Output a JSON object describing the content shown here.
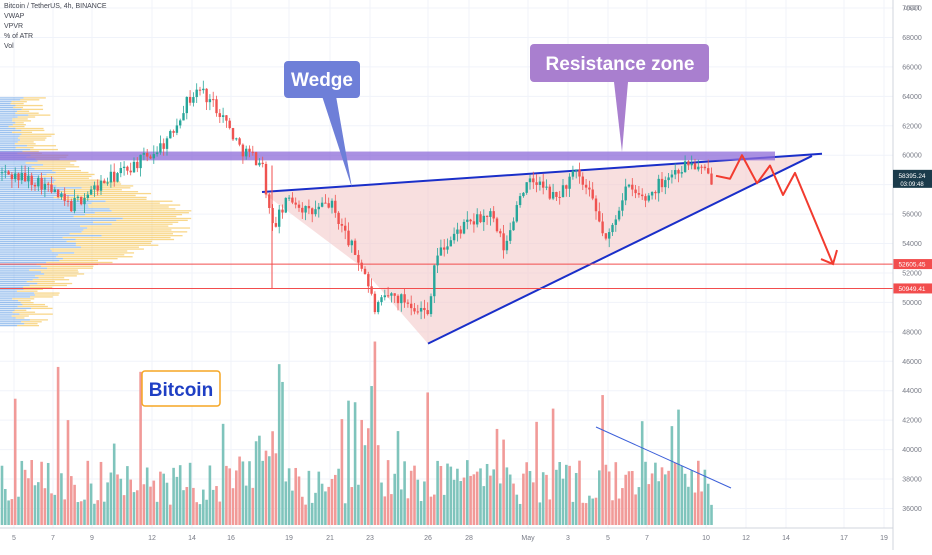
{
  "header": {
    "symbol_line": "Bitcoin / TetherUS, 4h, BINANCE",
    "indicators": [
      "VWAP",
      "VPVR",
      "% of ATR",
      "Vol"
    ]
  },
  "currency_label": "USDT",
  "colors": {
    "up": "#26a69a",
    "down": "#ef5350",
    "up_volume": "#7fc4bc",
    "down_volume": "#f19a98",
    "wedge_line": "#1a2fc9",
    "resistance_fill": "#8e6bd8",
    "wedge_fill": "#f4caca",
    "arrow": "#f23b2f",
    "support_line": "#f24d4d",
    "vp_blue": "#4d8fe0",
    "vp_yellow": "#f5c24d",
    "volume_trend": "#3b5fd9",
    "label_wedge_bg": "#6e7fd8",
    "label_resistance_bg": "#a97fcf",
    "label_bitcoin_border": "#f5a623",
    "label_bitcoin_text": "#1f3fc4"
  },
  "annotations": {
    "wedge": "Wedge",
    "resistance": "Resistance zone",
    "bitcoin": "Bitcoin"
  },
  "chart_data": {
    "type": "candlestick",
    "title": "Bitcoin / TetherUS, 4h, BINANCE",
    "y_axis": {
      "ticks": [
        36000,
        38000,
        40000,
        42000,
        44000,
        46000,
        48000,
        50000,
        52000,
        54000,
        56000,
        58000,
        60000,
        62000,
        64000,
        66000,
        68000,
        70000
      ],
      "range": [
        34800,
        70800
      ]
    },
    "x_axis": {
      "ticks": [
        "5",
        "7",
        "9",
        "12",
        "14",
        "16",
        "19",
        "21",
        "23",
        "26",
        "28",
        "May",
        "3",
        "5",
        "7",
        "10",
        "12",
        "14",
        "17",
        "19"
      ]
    },
    "price_labels": {
      "current": {
        "value": "58395.24",
        "countdown": "03:09:48"
      },
      "support_1": "52605.45",
      "support_2": "50949.41"
    },
    "resistance_zone": [
      59650,
      60250
    ],
    "support_levels": [
      52605.45,
      50949.41
    ],
    "wedge_upper": {
      "start": 57500,
      "end": 60100
    },
    "wedge_lower": {
      "start": 47200,
      "end": 59950
    }
  }
}
